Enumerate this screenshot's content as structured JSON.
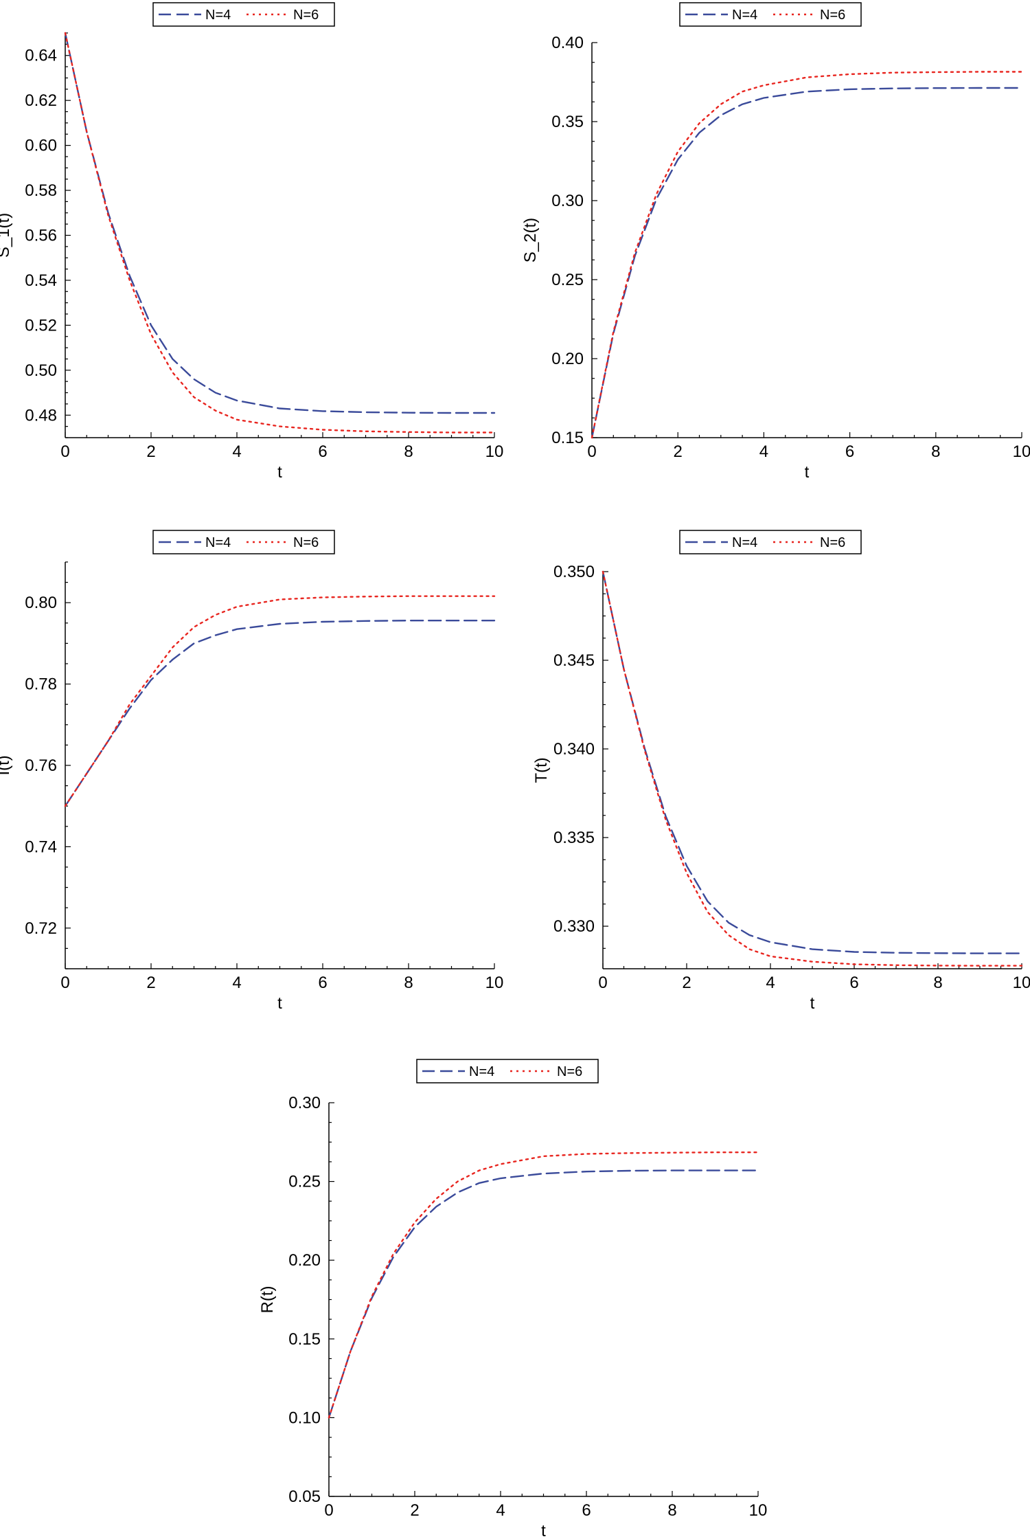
{
  "legend_labels": [
    "N=4",
    "N=6"
  ],
  "series_colors": {
    "N=4": "#3a4a9a",
    "N=6": "#e8251f"
  },
  "chart_data": [
    {
      "id": "s1",
      "type": "line",
      "xlabel": "t",
      "ylabel": "S_1(t)",
      "xlim": [
        0,
        10
      ],
      "ylim": [
        0.47,
        0.65
      ],
      "xticks": [
        0,
        2,
        4,
        6,
        8,
        10
      ],
      "yticks": [
        0.48,
        0.5,
        0.52,
        0.54,
        0.56,
        0.58,
        0.6,
        0.62,
        0.64
      ],
      "ytick_labels": [
        "0.48",
        "0.50",
        "0.52",
        "0.54",
        "0.56",
        "0.58",
        "0.60",
        "0.62",
        "0.64"
      ],
      "legend": "top-center",
      "grid": false,
      "x": [
        0,
        0.5,
        1,
        1.5,
        2,
        2.5,
        3,
        3.5,
        4,
        5,
        6,
        7,
        8,
        9,
        10
      ],
      "series": [
        {
          "name": "N=4",
          "style": "dashed",
          "values": [
            0.65,
            0.606,
            0.57,
            0.542,
            0.52,
            0.505,
            0.496,
            0.49,
            0.4865,
            0.483,
            0.4818,
            0.4813,
            0.4811,
            0.481,
            0.481
          ]
        },
        {
          "name": "N=6",
          "style": "dotted",
          "values": [
            0.65,
            0.606,
            0.569,
            0.54,
            0.516,
            0.499,
            0.488,
            0.482,
            0.478,
            0.475,
            0.4735,
            0.4728,
            0.4725,
            0.4723,
            0.4723
          ]
        }
      ]
    },
    {
      "id": "s2",
      "type": "line",
      "xlabel": "t",
      "ylabel": "S_2(t)",
      "xlim": [
        0,
        10
      ],
      "ylim": [
        0.15,
        0.4
      ],
      "xticks": [
        0,
        2,
        4,
        6,
        8,
        10
      ],
      "yticks": [
        0.15,
        0.2,
        0.25,
        0.3,
        0.35,
        0.4
      ],
      "ytick_labels": [
        "0.15",
        "0.20",
        "0.25",
        "0.30",
        "0.35",
        "0.40"
      ],
      "legend": "top-center",
      "grid": false,
      "x": [
        0,
        0.5,
        1,
        1.5,
        2,
        2.5,
        3,
        3.5,
        4,
        5,
        6,
        7,
        8,
        9,
        10
      ],
      "series": [
        {
          "name": "N=4",
          "style": "dashed",
          "values": [
            0.15,
            0.216,
            0.265,
            0.301,
            0.326,
            0.343,
            0.354,
            0.361,
            0.365,
            0.369,
            0.3705,
            0.371,
            0.3712,
            0.3713,
            0.3713
          ]
        },
        {
          "name": "N=6",
          "style": "dotted",
          "values": [
            0.15,
            0.217,
            0.267,
            0.304,
            0.331,
            0.349,
            0.361,
            0.369,
            0.373,
            0.378,
            0.38,
            0.381,
            0.3813,
            0.3815,
            0.3815
          ]
        }
      ]
    },
    {
      "id": "i",
      "type": "line",
      "xlabel": "t",
      "ylabel": "I(t)",
      "xlim": [
        0,
        10
      ],
      "ylim": [
        0.71,
        0.81
      ],
      "xticks": [
        0,
        2,
        4,
        6,
        8,
        10
      ],
      "yticks": [
        0.72,
        0.74,
        0.76,
        0.78,
        0.8
      ],
      "ytick_labels": [
        "0.72",
        "0.74",
        "0.76",
        "0.78",
        "0.80"
      ],
      "legend": "top-center",
      "grid": false,
      "x": [
        0,
        0.5,
        1,
        1.5,
        2,
        2.5,
        3,
        3.5,
        4,
        5,
        6,
        7,
        8,
        9,
        10
      ],
      "series": [
        {
          "name": "N=4",
          "style": "dashed",
          "values": [
            0.75,
            0.758,
            0.766,
            0.774,
            0.781,
            0.786,
            0.79,
            0.792,
            0.7935,
            0.7948,
            0.7953,
            0.7955,
            0.7956,
            0.7956,
            0.7956
          ]
        },
        {
          "name": "N=6",
          "style": "dotted",
          "values": [
            0.75,
            0.758,
            0.766,
            0.775,
            0.782,
            0.789,
            0.794,
            0.797,
            0.799,
            0.8008,
            0.8013,
            0.8015,
            0.8016,
            0.8016,
            0.8016
          ]
        }
      ]
    },
    {
      "id": "t",
      "type": "line",
      "xlabel": "t",
      "ylabel": "T(t)",
      "xlim": [
        0,
        10
      ],
      "ylim": [
        0.3276,
        0.35
      ],
      "xticks": [
        0,
        2,
        4,
        6,
        8,
        10
      ],
      "yticks": [
        0.33,
        0.335,
        0.34,
        0.345,
        0.35
      ],
      "ytick_labels": [
        "0.330",
        "0.335",
        "0.340",
        "0.345",
        "0.350"
      ],
      "legend": "top-center",
      "grid": false,
      "x": [
        0,
        0.5,
        1,
        1.5,
        2,
        2.5,
        3,
        3.5,
        4,
        5,
        6,
        7,
        8,
        9,
        10
      ],
      "series": [
        {
          "name": "N=4",
          "style": "dashed",
          "values": [
            0.35,
            0.3445,
            0.34,
            0.3362,
            0.3334,
            0.3314,
            0.3302,
            0.3295,
            0.3291,
            0.3287,
            0.32855,
            0.3285,
            0.32848,
            0.32847,
            0.32847
          ]
        },
        {
          "name": "N=6",
          "style": "dotted",
          "values": [
            0.35,
            0.3445,
            0.3399,
            0.336,
            0.333,
            0.3308,
            0.3295,
            0.3287,
            0.3283,
            0.328,
            0.32785,
            0.3278,
            0.32778,
            0.32777,
            0.32777
          ]
        }
      ]
    },
    {
      "id": "r",
      "type": "line",
      "xlabel": "t",
      "ylabel": "R(t)",
      "xlim": [
        0,
        10
      ],
      "ylim": [
        0.05,
        0.3
      ],
      "xticks": [
        0,
        2,
        4,
        6,
        8,
        10
      ],
      "yticks": [
        0.05,
        0.1,
        0.15,
        0.2,
        0.25,
        0.3
      ],
      "ytick_labels": [
        "0.05",
        "0.10",
        "0.15",
        "0.20",
        "0.25",
        "0.30"
      ],
      "legend": "top-center",
      "grid": false,
      "x": [
        0,
        0.5,
        1,
        1.5,
        2,
        2.5,
        3,
        3.5,
        4,
        5,
        6,
        7,
        8,
        9,
        10
      ],
      "series": [
        {
          "name": "N=4",
          "style": "dashed",
          "values": [
            0.1,
            0.142,
            0.176,
            0.202,
            0.221,
            0.234,
            0.243,
            0.249,
            0.252,
            0.255,
            0.2563,
            0.2568,
            0.257,
            0.257,
            0.257
          ]
        },
        {
          "name": "N=6",
          "style": "dotted",
          "values": [
            0.1,
            0.142,
            0.177,
            0.204,
            0.224,
            0.239,
            0.25,
            0.257,
            0.261,
            0.266,
            0.2675,
            0.268,
            0.2683,
            0.2685,
            0.2685
          ]
        }
      ]
    }
  ]
}
